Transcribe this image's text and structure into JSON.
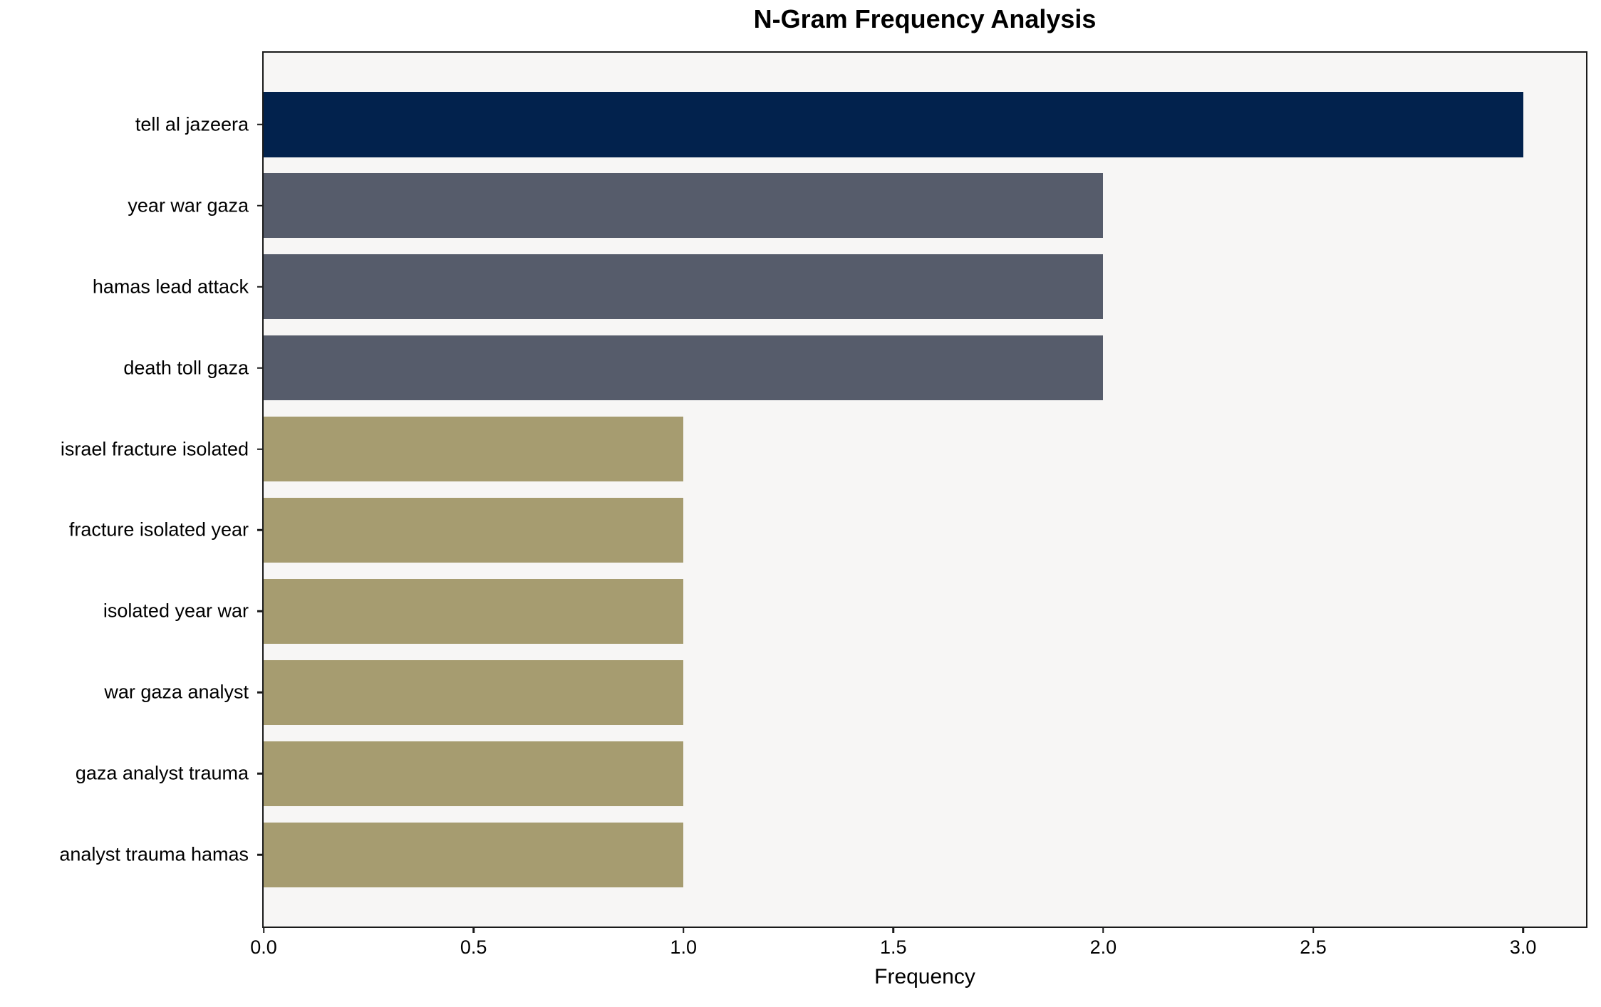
{
  "title": "N-Gram Frequency Analysis",
  "chart_data": {
    "type": "bar",
    "orientation": "horizontal",
    "title": "N-Gram Frequency Analysis",
    "xlabel": "Frequency",
    "ylabel": "",
    "categories": [
      "tell al jazeera",
      "year war gaza",
      "hamas lead attack",
      "death toll gaza",
      "israel fracture isolated",
      "fracture isolated year",
      "isolated year war",
      "war gaza analyst",
      "gaza analyst trauma",
      "analyst trauma hamas"
    ],
    "values": [
      3,
      2,
      2,
      2,
      1,
      1,
      1,
      1,
      1,
      1
    ],
    "bar_colors": [
      "#02224d",
      "#565c6b",
      "#565c6b",
      "#565c6b",
      "#a69c70",
      "#a69c70",
      "#a69c70",
      "#a69c70",
      "#a69c70",
      "#a69c70"
    ],
    "xlim": [
      0,
      3.15
    ],
    "xticks": [
      0,
      0.5,
      1.0,
      1.5,
      2.0,
      2.5,
      3.0
    ],
    "xtick_labels": [
      "0.0",
      "0.5",
      "1.0",
      "1.5",
      "2.0",
      "2.5",
      "3.0"
    ],
    "grid": false,
    "legend_position": "none",
    "plot_background": "#f7f6f5",
    "figure_background": "#ffffff",
    "spine_color": "#1a1a1a"
  }
}
